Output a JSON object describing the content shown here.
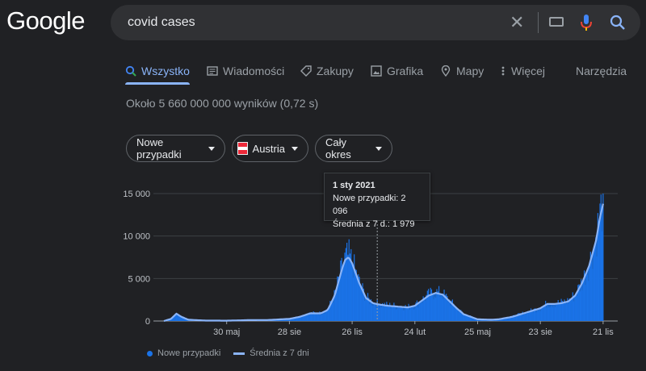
{
  "logo": "Google",
  "search": {
    "query": "covid cases"
  },
  "tabs": [
    {
      "label": "Wszystko",
      "icon": "search-icon"
    },
    {
      "label": "Wiadomości",
      "icon": "news-icon"
    },
    {
      "label": "Zakupy",
      "icon": "tag-icon"
    },
    {
      "label": "Grafika",
      "icon": "image-icon"
    },
    {
      "label": "Mapy",
      "icon": "map-pin-icon"
    },
    {
      "label": "Więcej",
      "icon": "more-vert-icon"
    }
  ],
  "tools_label": "Narzędzia",
  "results_stats": "Około 5 660 000 000 wyników (0,72 s)",
  "filters": {
    "metric": "Nowe przypadki",
    "country": "Austria",
    "period": "Cały okres"
  },
  "colors": {
    "accent": "#8ab4f8",
    "bars": "#1a73e8",
    "flag_red": "#ed2939",
    "flag_white": "#ffffff"
  },
  "tooltip": {
    "date": "1 sty 2021",
    "line1": "Nowe przypadki: 2 096",
    "line2": "Średnia z 7 d.: 1 979"
  },
  "legend": {
    "bars": "Nowe przypadki",
    "line": "Średnia z 7 dni"
  },
  "chart_data": {
    "type": "area",
    "title": "",
    "xlabel": "",
    "ylabel": "",
    "ylim": [
      0,
      15000
    ],
    "y_ticks": [
      "15 000",
      "10 000",
      "5 000",
      "0"
    ],
    "y_tick_values": [
      15000,
      10000,
      5000,
      0
    ],
    "x_ticks": [
      "30 maj",
      "28 sie",
      "26 lis",
      "24 lut",
      "25 maj",
      "23 sie",
      "21 lis"
    ],
    "x_tick_days": [
      90,
      180,
      270,
      360,
      450,
      540,
      630
    ],
    "x_unit": "days since 2020-03-01",
    "grid": true,
    "highlight_day": 306,
    "series": [
      {
        "name": "Średnia z 7 dni",
        "x": [
          0,
          10,
          18,
          25,
          35,
          60,
          90,
          120,
          150,
          180,
          195,
          210,
          225,
          235,
          245,
          255,
          260,
          265,
          270,
          280,
          290,
          300,
          306,
          320,
          335,
          350,
          360,
          370,
          380,
          390,
          400,
          410,
          420,
          430,
          450,
          470,
          480,
          500,
          520,
          540,
          550,
          560,
          570,
          580,
          590,
          600,
          610,
          620,
          625,
          630
        ],
        "values": [
          0,
          250,
          850,
          500,
          150,
          50,
          40,
          100,
          120,
          250,
          500,
          900,
          900,
          1300,
          3000,
          6000,
          7200,
          7500,
          6800,
          4500,
          2700,
          2100,
          1979,
          1800,
          1700,
          1600,
          1800,
          2400,
          3000,
          3300,
          3100,
          2300,
          1500,
          800,
          200,
          150,
          200,
          500,
          1000,
          1500,
          2000,
          2000,
          2100,
          2300,
          3000,
          4500,
          6500,
          9500,
          12000,
          13800
        ]
      }
    ]
  }
}
